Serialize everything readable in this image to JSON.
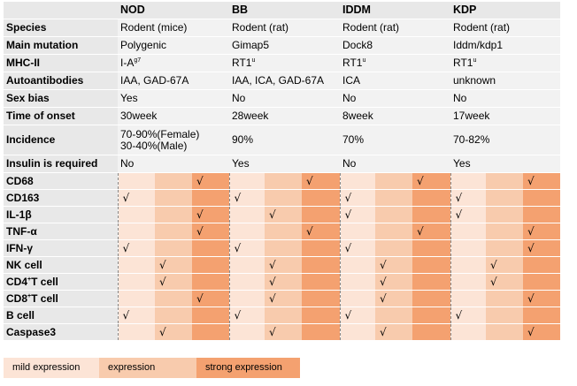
{
  "columns": [
    "NOD",
    "BB",
    "IDDM",
    "KDP"
  ],
  "info_rows": [
    {
      "label": "Species",
      "values": [
        "Rodent (mice)",
        "Rodent (rat)",
        "Rodent (rat)",
        "Rodent (rat)"
      ]
    },
    {
      "label": "Main mutation",
      "values": [
        "Polygenic",
        "Gimap5",
        "Dock8",
        "Iddm/kdp1"
      ]
    },
    {
      "label": "MHC-II",
      "values": [
        "I-A",
        "RT1",
        "RT1",
        "RT1"
      ],
      "superscripts": [
        "g7",
        "u",
        "u",
        "u"
      ]
    },
    {
      "label": "Autoantibodies",
      "values": [
        "IAA, GAD-67A",
        "IAA, ICA, GAD-67A",
        "ICA",
        "unknown"
      ]
    },
    {
      "label": "Sex bias",
      "values": [
        "Yes",
        "No",
        "No",
        "No"
      ]
    },
    {
      "label": "Time of onset",
      "values": [
        "30week",
        "28week",
        "8week",
        "17week"
      ]
    },
    {
      "label": "Incidence",
      "values": [
        "70-90%(Female)",
        "90%",
        "70%",
        "70-82%"
      ],
      "second_line": [
        "30-40%(Male)",
        "",
        "",
        ""
      ]
    },
    {
      "label": "Insulin is required",
      "values": [
        "No",
        "Yes",
        "No",
        "Yes"
      ]
    }
  ],
  "check_symbol": "√",
  "expression_rows": [
    {
      "label": "CD68",
      "levels": [
        3,
        3,
        3,
        3
      ]
    },
    {
      "label": "CD163",
      "levels": [
        1,
        1,
        1,
        1
      ]
    },
    {
      "label": "IL-1β",
      "levels": [
        3,
        2,
        1,
        1
      ]
    },
    {
      "label": "TNF-α",
      "levels": [
        3,
        3,
        3,
        3
      ]
    },
    {
      "label": "IFN-γ",
      "levels": [
        1,
        1,
        1,
        3
      ]
    },
    {
      "label": "NK cell",
      "levels": [
        2,
        2,
        2,
        2
      ]
    },
    {
      "label": "CD4",
      "label_sup": "+",
      "label_rest": "T cell",
      "levels": [
        2,
        2,
        2,
        2
      ]
    },
    {
      "label": "CD8",
      "label_sup": "+",
      "label_rest": "T cell",
      "levels": [
        3,
        2,
        2,
        3
      ]
    },
    {
      "label": "B cell",
      "levels": [
        1,
        1,
        1,
        1
      ]
    },
    {
      "label": "Caspase3",
      "levels": [
        2,
        2,
        2,
        3
      ]
    }
  ],
  "legend": [
    "mild expression",
    "expression",
    "strong expression"
  ],
  "colors": {
    "mild": "#fce4d6",
    "medium": "#f8cbad",
    "strong": "#f4a170",
    "header": "#e8e8e8",
    "row": "#f2f2f2"
  }
}
